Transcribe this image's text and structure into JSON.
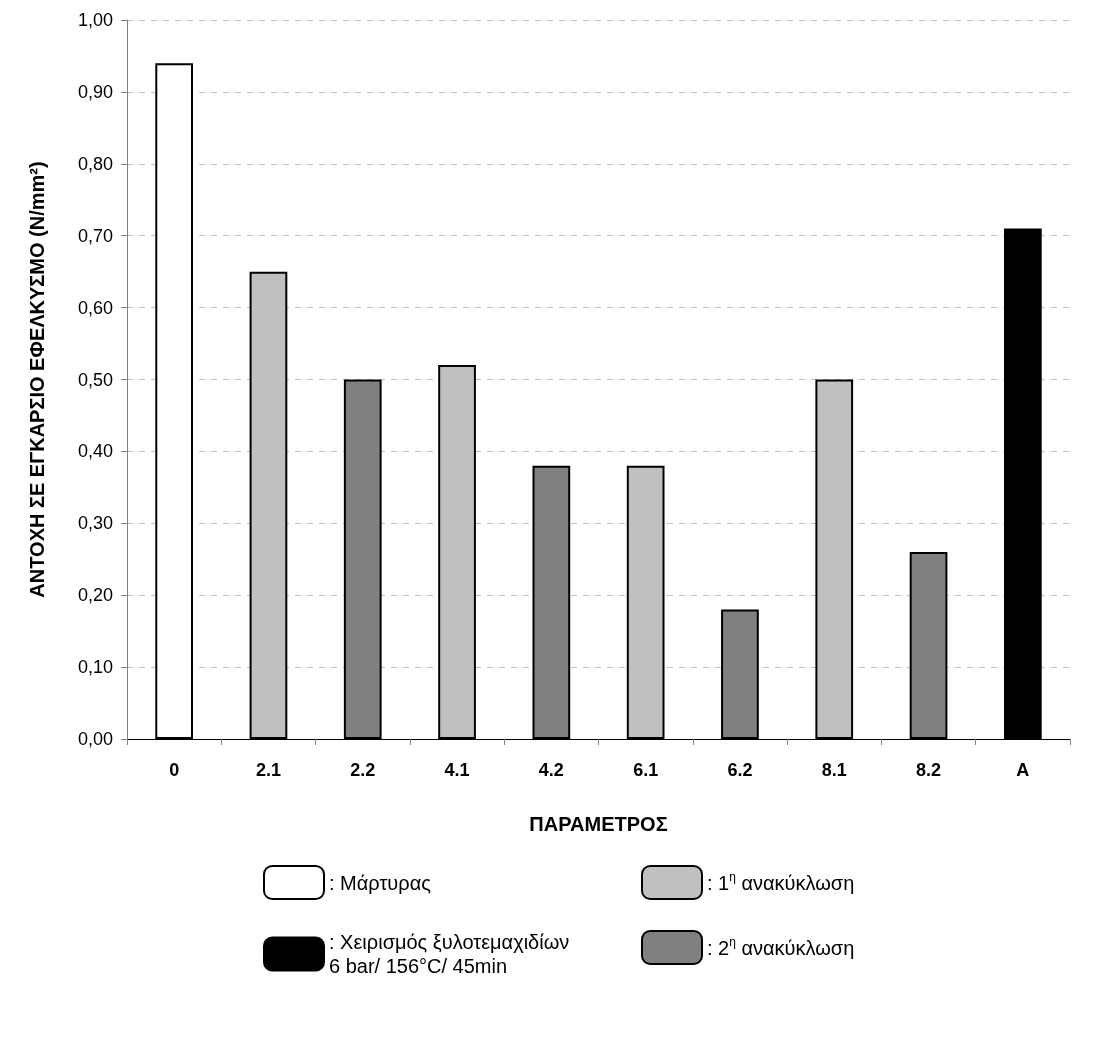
{
  "chart_data": {
    "type": "bar",
    "xlabel": "ΠΑΡΑΜΕΤΡΟΣ",
    "ylabel": "ΑΝΤΟΧΗ ΣΕ ΕΓΚΑΡΣΙΟ ΕΦΕΛΚΥΣΜΟ (N/mm²)",
    "categories": [
      "0",
      "2.1",
      "2.2",
      "4.1",
      "4.2",
      "6.1",
      "6.2",
      "8.1",
      "8.2",
      "A"
    ],
    "series": [
      {
        "name": ": Μάρτυρας",
        "color": "#ffffff",
        "values": [
          0.94,
          null,
          null,
          null,
          null,
          null,
          null,
          null,
          null,
          null
        ]
      },
      {
        "name": ": 1$^{η}$ ανακύκλωση",
        "color": "#c0c0c0",
        "values": [
          null,
          0.65,
          null,
          0.52,
          null,
          0.38,
          null,
          0.5,
          null,
          null
        ]
      },
      {
        "name": ": Χειρισμός ξυλοτεμαχιδίων\n6 bar/ 156°C/ 45min",
        "color": "#000000",
        "values": [
          null,
          null,
          null,
          null,
          null,
          null,
          null,
          null,
          null,
          0.71
        ]
      },
      {
        "name": ": 2$^{η}$ ανακύκλωση",
        "color": "#808080",
        "values": [
          null,
          null,
          0.5,
          null,
          0.38,
          null,
          0.18,
          null,
          0.26,
          null
        ]
      }
    ],
    "ylim": [
      0,
      1
    ],
    "yticks": [
      {
        "value": 0,
        "label": "0,00"
      },
      {
        "value": 0.1,
        "label": "0,10"
      },
      {
        "value": 0.2,
        "label": "0,20"
      },
      {
        "value": 0.3,
        "label": "0,30"
      },
      {
        "value": 0.4,
        "label": "0,40"
      },
      {
        "value": 0.5,
        "label": "0,50"
      },
      {
        "value": 0.6,
        "label": "0,60"
      },
      {
        "value": 0.7,
        "label": "0,70"
      },
      {
        "value": 0.8,
        "label": "0,80"
      },
      {
        "value": 0.9,
        "label": "0,90"
      },
      {
        "value": 1,
        "label": "1,00"
      }
    ],
    "grid": "y",
    "legend": "bottom"
  }
}
